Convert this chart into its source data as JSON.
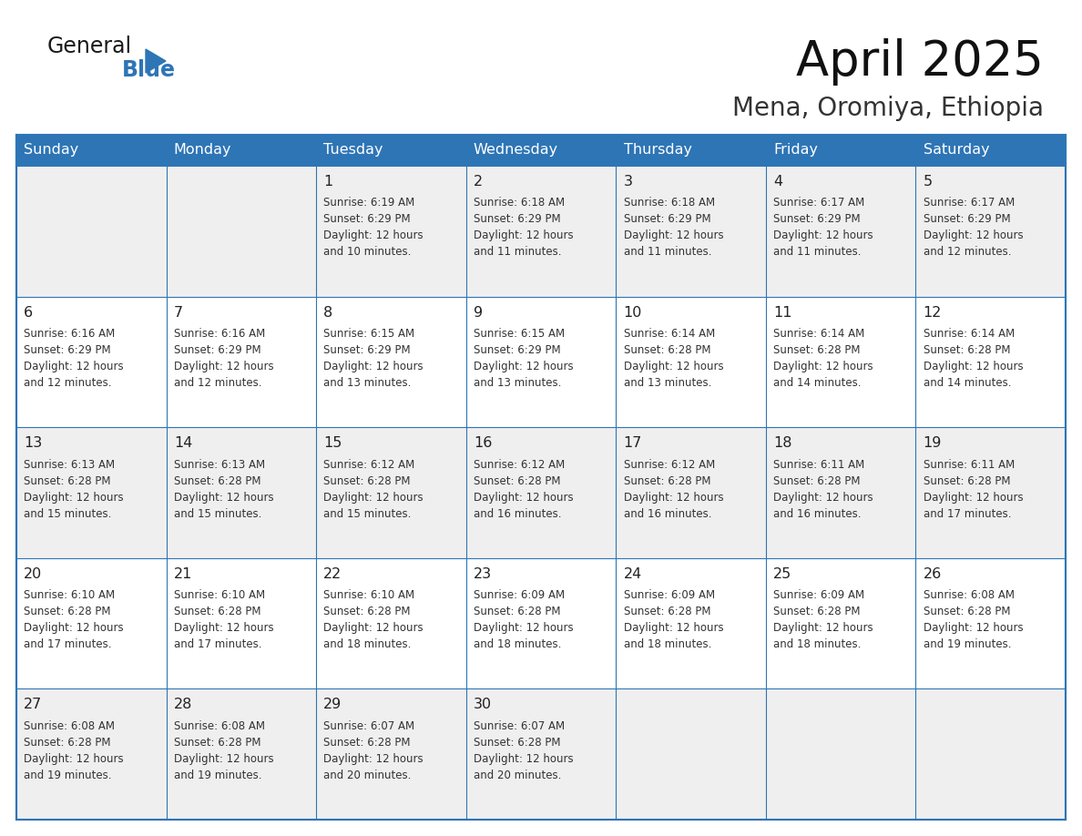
{
  "title": "April 2025",
  "subtitle": "Mena, Oromiya, Ethiopia",
  "header_color": "#2E75B6",
  "header_text_color": "#FFFFFF",
  "cell_bg_white": "#FFFFFF",
  "cell_bg_gray": "#EFEFEF",
  "border_color": "#2E75B6",
  "text_color": "#333333",
  "days_of_week": [
    "Sunday",
    "Monday",
    "Tuesday",
    "Wednesday",
    "Thursday",
    "Friday",
    "Saturday"
  ],
  "row_bg": [
    "gray",
    "white",
    "gray",
    "white",
    "gray"
  ],
  "weeks": [
    [
      {
        "day": "",
        "info": ""
      },
      {
        "day": "",
        "info": ""
      },
      {
        "day": "1",
        "info": "Sunrise: 6:19 AM\nSunset: 6:29 PM\nDaylight: 12 hours\nand 10 minutes."
      },
      {
        "day": "2",
        "info": "Sunrise: 6:18 AM\nSunset: 6:29 PM\nDaylight: 12 hours\nand 11 minutes."
      },
      {
        "day": "3",
        "info": "Sunrise: 6:18 AM\nSunset: 6:29 PM\nDaylight: 12 hours\nand 11 minutes."
      },
      {
        "day": "4",
        "info": "Sunrise: 6:17 AM\nSunset: 6:29 PM\nDaylight: 12 hours\nand 11 minutes."
      },
      {
        "day": "5",
        "info": "Sunrise: 6:17 AM\nSunset: 6:29 PM\nDaylight: 12 hours\nand 12 minutes."
      }
    ],
    [
      {
        "day": "6",
        "info": "Sunrise: 6:16 AM\nSunset: 6:29 PM\nDaylight: 12 hours\nand 12 minutes."
      },
      {
        "day": "7",
        "info": "Sunrise: 6:16 AM\nSunset: 6:29 PM\nDaylight: 12 hours\nand 12 minutes."
      },
      {
        "day": "8",
        "info": "Sunrise: 6:15 AM\nSunset: 6:29 PM\nDaylight: 12 hours\nand 13 minutes."
      },
      {
        "day": "9",
        "info": "Sunrise: 6:15 AM\nSunset: 6:29 PM\nDaylight: 12 hours\nand 13 minutes."
      },
      {
        "day": "10",
        "info": "Sunrise: 6:14 AM\nSunset: 6:28 PM\nDaylight: 12 hours\nand 13 minutes."
      },
      {
        "day": "11",
        "info": "Sunrise: 6:14 AM\nSunset: 6:28 PM\nDaylight: 12 hours\nand 14 minutes."
      },
      {
        "day": "12",
        "info": "Sunrise: 6:14 AM\nSunset: 6:28 PM\nDaylight: 12 hours\nand 14 minutes."
      }
    ],
    [
      {
        "day": "13",
        "info": "Sunrise: 6:13 AM\nSunset: 6:28 PM\nDaylight: 12 hours\nand 15 minutes."
      },
      {
        "day": "14",
        "info": "Sunrise: 6:13 AM\nSunset: 6:28 PM\nDaylight: 12 hours\nand 15 minutes."
      },
      {
        "day": "15",
        "info": "Sunrise: 6:12 AM\nSunset: 6:28 PM\nDaylight: 12 hours\nand 15 minutes."
      },
      {
        "day": "16",
        "info": "Sunrise: 6:12 AM\nSunset: 6:28 PM\nDaylight: 12 hours\nand 16 minutes."
      },
      {
        "day": "17",
        "info": "Sunrise: 6:12 AM\nSunset: 6:28 PM\nDaylight: 12 hours\nand 16 minutes."
      },
      {
        "day": "18",
        "info": "Sunrise: 6:11 AM\nSunset: 6:28 PM\nDaylight: 12 hours\nand 16 minutes."
      },
      {
        "day": "19",
        "info": "Sunrise: 6:11 AM\nSunset: 6:28 PM\nDaylight: 12 hours\nand 17 minutes."
      }
    ],
    [
      {
        "day": "20",
        "info": "Sunrise: 6:10 AM\nSunset: 6:28 PM\nDaylight: 12 hours\nand 17 minutes."
      },
      {
        "day": "21",
        "info": "Sunrise: 6:10 AM\nSunset: 6:28 PM\nDaylight: 12 hours\nand 17 minutes."
      },
      {
        "day": "22",
        "info": "Sunrise: 6:10 AM\nSunset: 6:28 PM\nDaylight: 12 hours\nand 18 minutes."
      },
      {
        "day": "23",
        "info": "Sunrise: 6:09 AM\nSunset: 6:28 PM\nDaylight: 12 hours\nand 18 minutes."
      },
      {
        "day": "24",
        "info": "Sunrise: 6:09 AM\nSunset: 6:28 PM\nDaylight: 12 hours\nand 18 minutes."
      },
      {
        "day": "25",
        "info": "Sunrise: 6:09 AM\nSunset: 6:28 PM\nDaylight: 12 hours\nand 18 minutes."
      },
      {
        "day": "26",
        "info": "Sunrise: 6:08 AM\nSunset: 6:28 PM\nDaylight: 12 hours\nand 19 minutes."
      }
    ],
    [
      {
        "day": "27",
        "info": "Sunrise: 6:08 AM\nSunset: 6:28 PM\nDaylight: 12 hours\nand 19 minutes."
      },
      {
        "day": "28",
        "info": "Sunrise: 6:08 AM\nSunset: 6:28 PM\nDaylight: 12 hours\nand 19 minutes."
      },
      {
        "day": "29",
        "info": "Sunrise: 6:07 AM\nSunset: 6:28 PM\nDaylight: 12 hours\nand 20 minutes."
      },
      {
        "day": "30",
        "info": "Sunrise: 6:07 AM\nSunset: 6:28 PM\nDaylight: 12 hours\nand 20 minutes."
      },
      {
        "day": "",
        "info": ""
      },
      {
        "day": "",
        "info": ""
      },
      {
        "day": "",
        "info": ""
      }
    ]
  ],
  "logo_general_color": "#1a1a1a",
  "logo_blue_color": "#2E75B6"
}
